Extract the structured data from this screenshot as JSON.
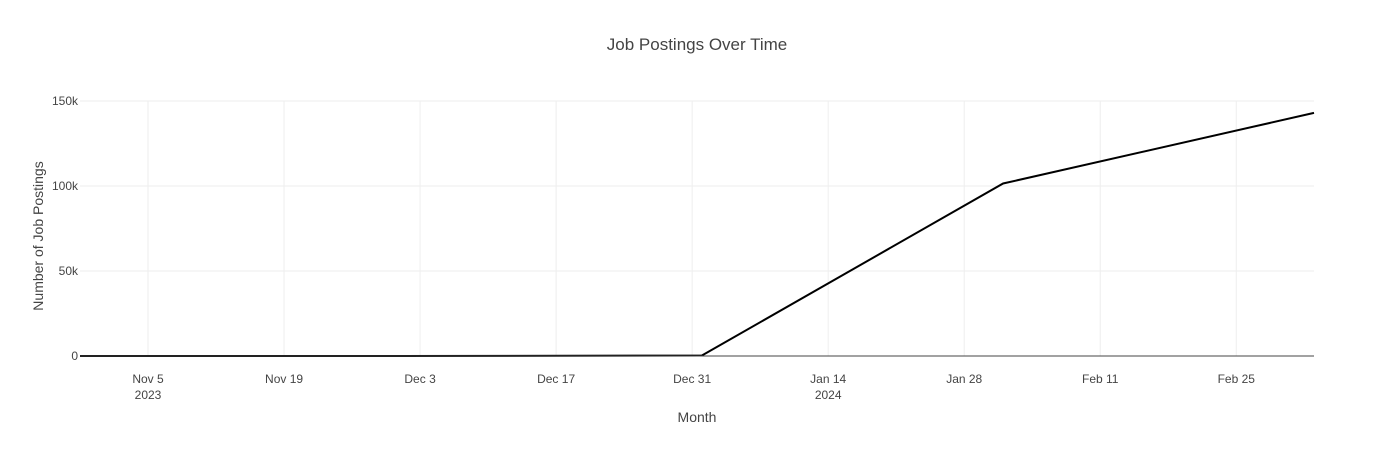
{
  "chart_data": {
    "type": "line",
    "title": "Job Postings Over Time",
    "xlabel": "Month",
    "ylabel": "Number of Job Postings",
    "x_range": [
      "2023-10-29",
      "2024-03-04"
    ],
    "ylim": [
      0,
      150000
    ],
    "y_ticks": [
      0,
      50000,
      100000,
      150000
    ],
    "y_tick_labels": [
      "0",
      "50k",
      "100k",
      "150k"
    ],
    "x_ticks": [
      {
        "date": "2023-11-05",
        "label": "Nov 5",
        "sublabel": "2023"
      },
      {
        "date": "2023-11-19",
        "label": "Nov 19",
        "sublabel": ""
      },
      {
        "date": "2023-12-03",
        "label": "Dec 3",
        "sublabel": ""
      },
      {
        "date": "2023-12-17",
        "label": "Dec 17",
        "sublabel": ""
      },
      {
        "date": "2023-12-31",
        "label": "Dec 31",
        "sublabel": ""
      },
      {
        "date": "2024-01-14",
        "label": "Jan 14",
        "sublabel": "2024"
      },
      {
        "date": "2024-01-28",
        "label": "Jan 28",
        "sublabel": ""
      },
      {
        "date": "2024-02-11",
        "label": "Feb 11",
        "sublabel": ""
      },
      {
        "date": "2024-02-25",
        "label": "Feb 25",
        "sublabel": ""
      }
    ],
    "grid": true,
    "series": [
      {
        "color": "#000000",
        "x": [
          "2023-10-29",
          "2023-12-01",
          "2024-01-01",
          "2024-02-01",
          "2024-03-04"
        ],
        "y": [
          10,
          20,
          300,
          101500,
          143000
        ]
      }
    ]
  }
}
